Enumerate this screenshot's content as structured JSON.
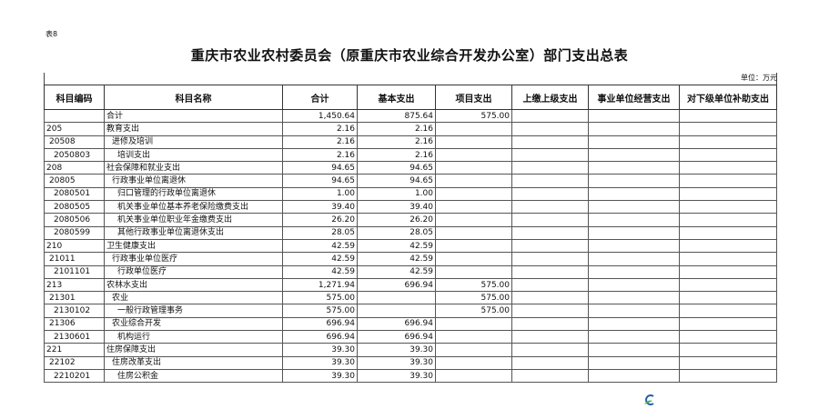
{
  "table_tag": "表8",
  "title": "重庆市农业农村委员会（原重庆市农业综合开发办公室）部门支出总表",
  "unit": "单位：万元",
  "columns": [
    "科目编码",
    "科目名称",
    "合计",
    "基本支出",
    "项目支出",
    "上缴上级支出",
    "事业单位经营支出",
    "对下级单位补助支出"
  ],
  "rows": [
    {
      "level": 1,
      "code": "",
      "name": "合计",
      "total": "1,450.64",
      "basic": "875.64",
      "project": "575.00"
    },
    {
      "level": 1,
      "code": "205",
      "name": "教育支出",
      "total": "2.16",
      "basic": "2.16",
      "project": ""
    },
    {
      "level": 2,
      "code": "20508",
      "name": "进修及培训",
      "total": "2.16",
      "basic": "2.16",
      "project": ""
    },
    {
      "level": 3,
      "code": "2050803",
      "name": "培训支出",
      "total": "2.16",
      "basic": "2.16",
      "project": ""
    },
    {
      "level": 1,
      "code": "208",
      "name": "社会保障和就业支出",
      "total": "94.65",
      "basic": "94.65",
      "project": ""
    },
    {
      "level": 2,
      "code": "20805",
      "name": "行政事业单位离退休",
      "total": "94.65",
      "basic": "94.65",
      "project": ""
    },
    {
      "level": 3,
      "code": "2080501",
      "name": "归口管理的行政单位离退休",
      "total": "1.00",
      "basic": "1.00",
      "project": ""
    },
    {
      "level": 3,
      "code": "2080505",
      "name": "机关事业单位基本养老保险缴费支出",
      "total": "39.40",
      "basic": "39.40",
      "project": ""
    },
    {
      "level": 3,
      "code": "2080506",
      "name": "机关事业单位职业年金缴费支出",
      "total": "26.20",
      "basic": "26.20",
      "project": ""
    },
    {
      "level": 3,
      "code": "2080599",
      "name": "其他行政事业单位离退休支出",
      "total": "28.05",
      "basic": "28.05",
      "project": ""
    },
    {
      "level": 1,
      "code": "210",
      "name": "卫生健康支出",
      "total": "42.59",
      "basic": "42.59",
      "project": ""
    },
    {
      "level": 2,
      "code": "21011",
      "name": "行政事业单位医疗",
      "total": "42.59",
      "basic": "42.59",
      "project": ""
    },
    {
      "level": 3,
      "code": "2101101",
      "name": "行政单位医疗",
      "total": "42.59",
      "basic": "42.59",
      "project": ""
    },
    {
      "level": 1,
      "code": "213",
      "name": "农林水支出",
      "total": "1,271.94",
      "basic": "696.94",
      "project": "575.00"
    },
    {
      "level": 2,
      "code": "21301",
      "name": "农业",
      "total": "575.00",
      "basic": "",
      "project": "575.00"
    },
    {
      "level": 3,
      "code": "2130102",
      "name": "一般行政管理事务",
      "total": "575.00",
      "basic": "",
      "project": "575.00"
    },
    {
      "level": 2,
      "code": "21306",
      "name": "农业综合开发",
      "total": "696.94",
      "basic": "696.94",
      "project": ""
    },
    {
      "level": 3,
      "code": "2130601",
      "name": "机构运行",
      "total": "696.94",
      "basic": "696.94",
      "project": ""
    },
    {
      "level": 1,
      "code": "221",
      "name": "住房保障支出",
      "total": "39.30",
      "basic": "39.30",
      "project": ""
    },
    {
      "level": 2,
      "code": "22102",
      "name": "住房改革支出",
      "total": "39.30",
      "basic": "39.30",
      "project": ""
    },
    {
      "level": 3,
      "code": "2210201",
      "name": "住房公积金",
      "total": "39.30",
      "basic": "39.30",
      "project": ""
    }
  ],
  "logo_icon": "green-leaf-logo"
}
